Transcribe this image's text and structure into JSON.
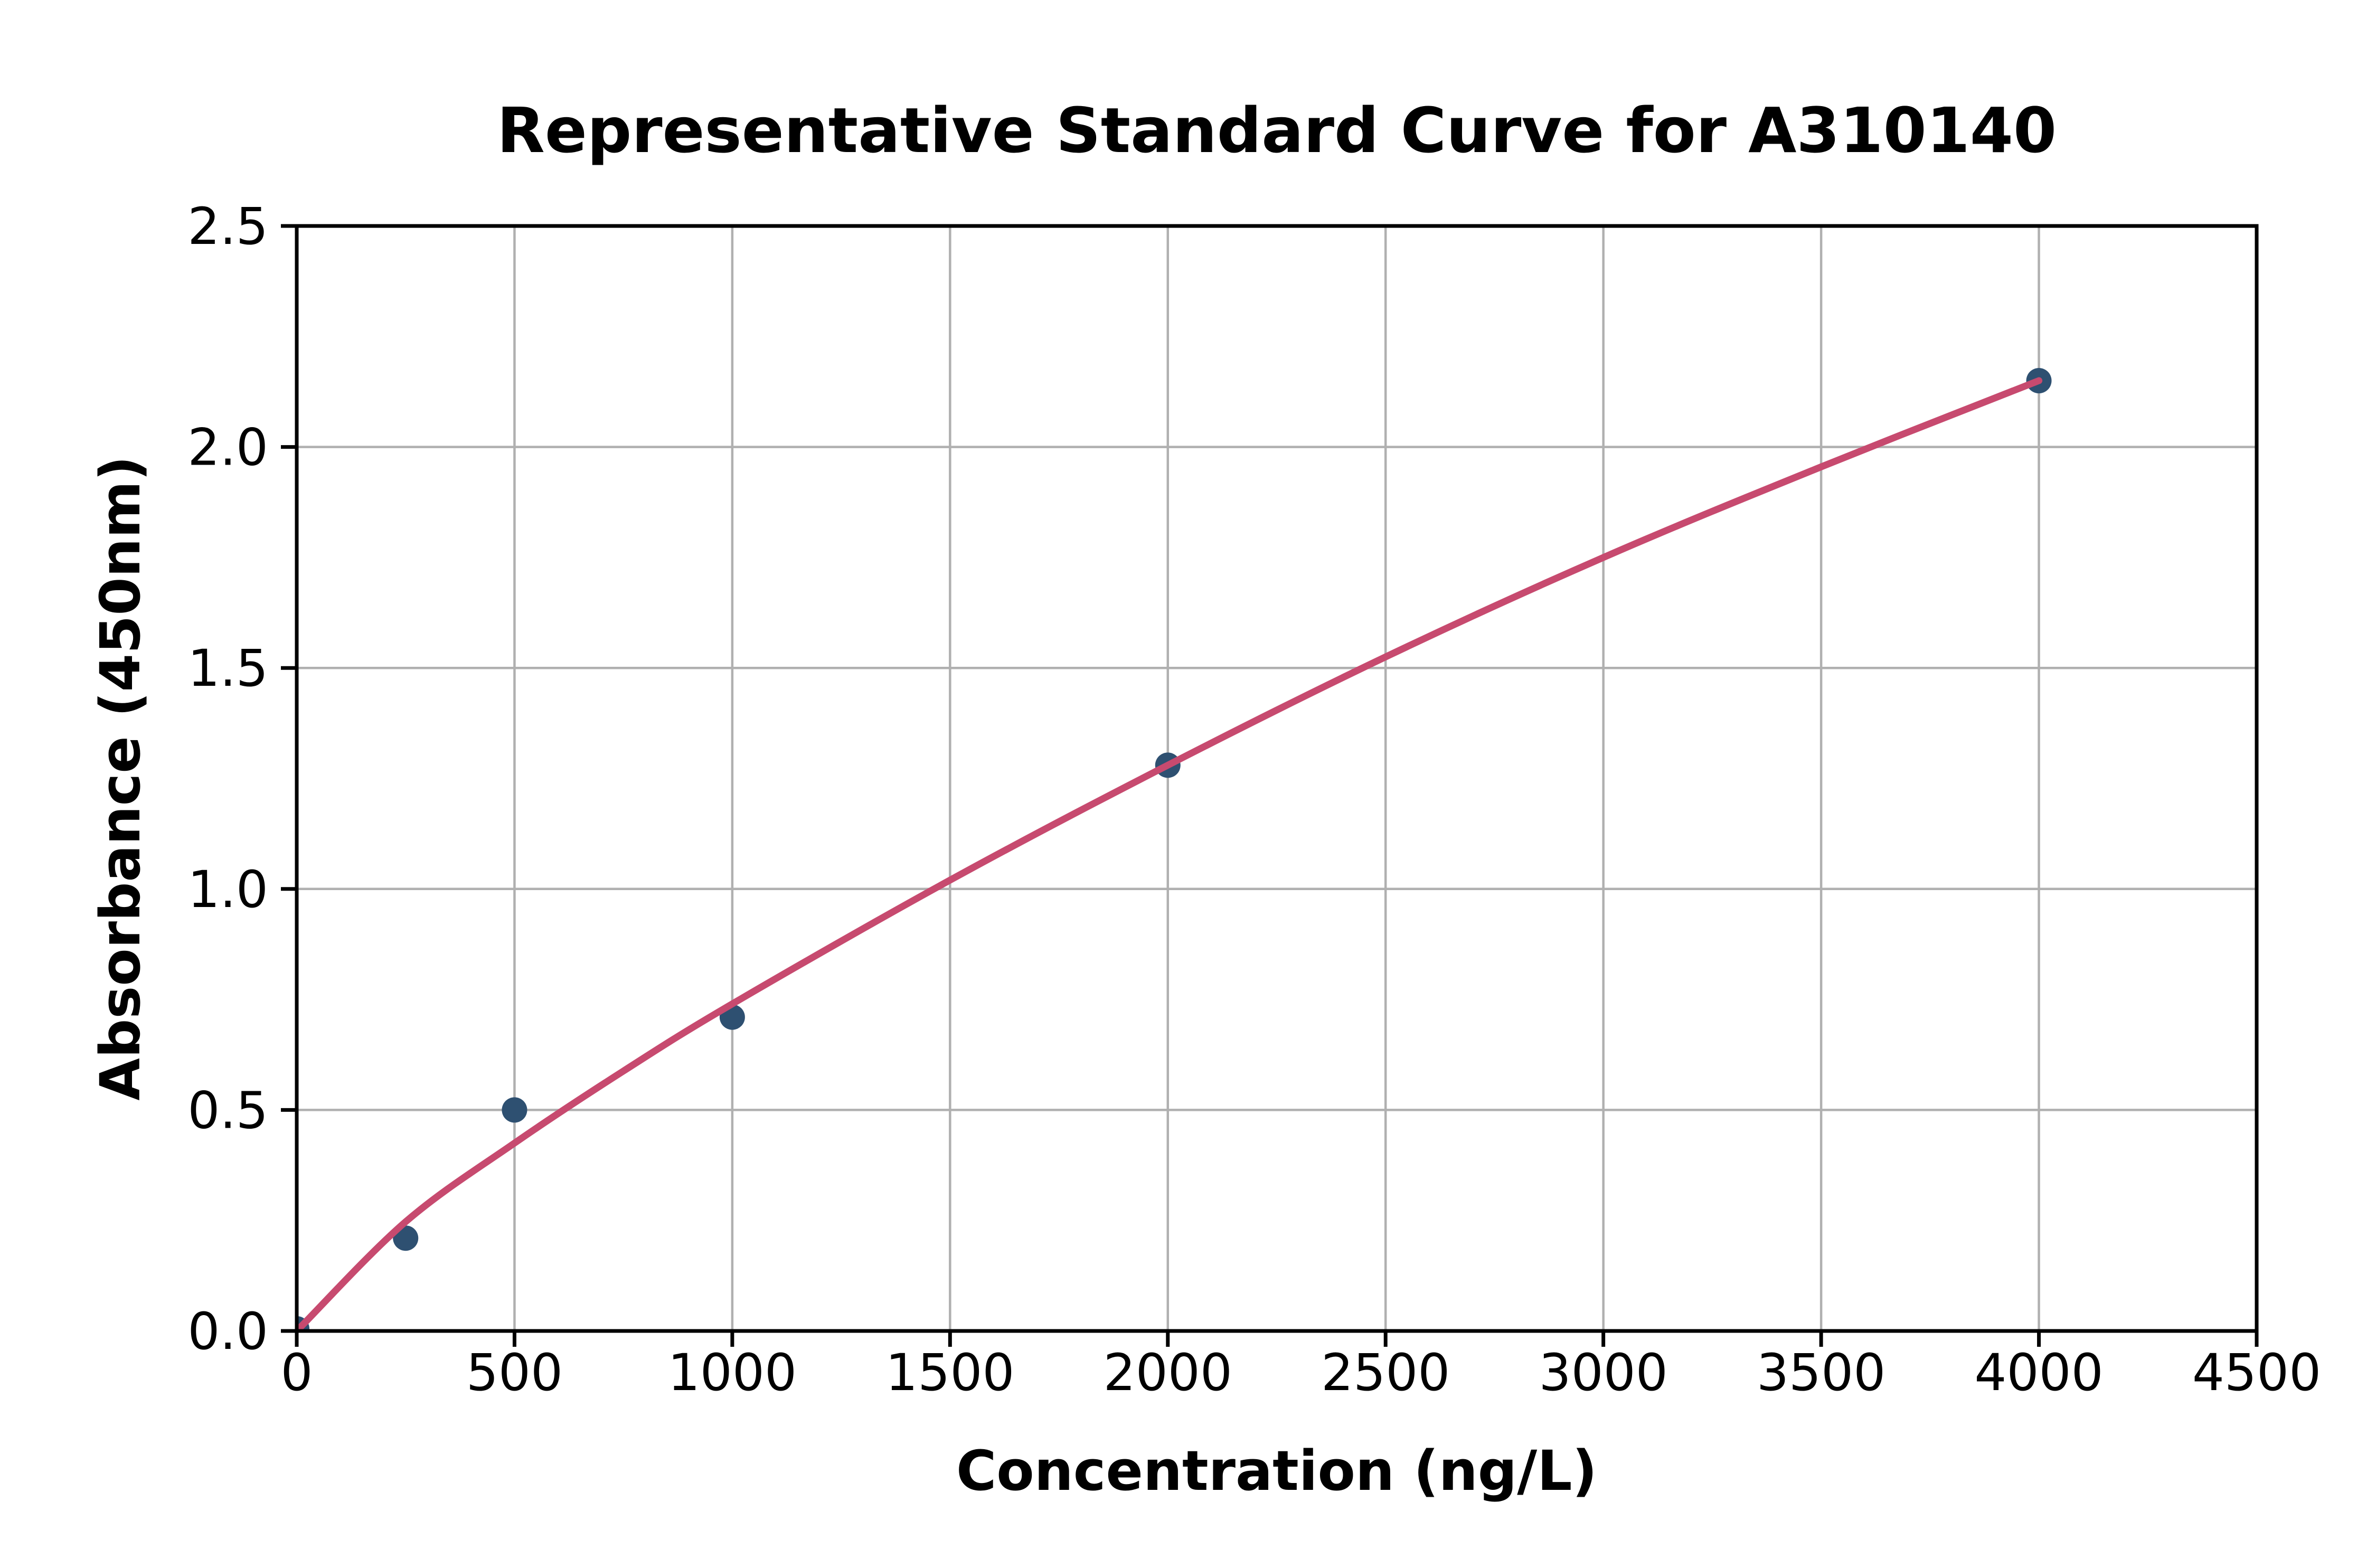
{
  "chart_data": {
    "type": "scatter",
    "title": "Representative Standard Curve for A310140",
    "xlabel": "Concentration (ng/L)",
    "ylabel": "Absorbance (450nm)",
    "xlim": [
      0,
      4500
    ],
    "ylim": [
      0,
      2.5
    ],
    "x_ticks": [
      "0",
      "500",
      "1000",
      "1500",
      "2000",
      "2500",
      "3000",
      "3500",
      "4000",
      "4500"
    ],
    "y_ticks": [
      "0.0",
      "0.5",
      "1.0",
      "1.5",
      "2.0",
      "2.5"
    ],
    "grid": true,
    "legend": false,
    "series": [
      {
        "name": "standard-points",
        "type": "scatter",
        "color": "#2E5071",
        "points": [
          [
            0,
            0.005
          ],
          [
            250,
            0.21
          ],
          [
            500,
            0.5
          ],
          [
            1000,
            0.71
          ],
          [
            2000,
            1.28
          ],
          [
            4000,
            2.15
          ]
        ]
      },
      {
        "name": "fitted-curve",
        "type": "line",
        "color": "#C74A6F",
        "points": [
          [
            10,
            0.01
          ],
          [
            250,
            0.247
          ],
          [
            500,
            0.425
          ],
          [
            750,
            0.588
          ],
          [
            1000,
            0.74
          ],
          [
            1500,
            1.02
          ],
          [
            2000,
            1.28
          ],
          [
            2500,
            1.525
          ],
          [
            3000,
            1.75
          ],
          [
            3500,
            1.955
          ],
          [
            4000,
            2.15
          ]
        ]
      }
    ],
    "colors": {
      "grid": "#B0B0B0",
      "spine": "#000000",
      "text": "#000000",
      "background": "#FFFFFF"
    }
  }
}
